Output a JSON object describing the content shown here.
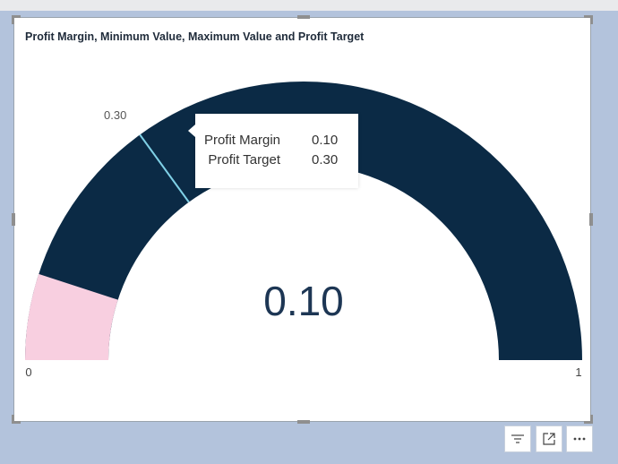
{
  "visual": {
    "title": "Profit Margin, Minimum Value, Maximum Value and Profit Target"
  },
  "chart_data": {
    "type": "gauge",
    "min": 0,
    "max": 1,
    "value": 0.1,
    "target": 0.3,
    "min_label": "0",
    "max_label": "1",
    "value_label": "0.10",
    "target_label": "0.30",
    "colors": {
      "fill": "#f8cfe0",
      "track": "#0b2a45",
      "target_line": "#7fd0e6"
    }
  },
  "tooltip": {
    "rows": [
      {
        "label": "Profit Margin",
        "value": "0.10"
      },
      {
        "label": "Profit Target",
        "value": "0.30"
      }
    ]
  },
  "toolbar": {
    "filter_icon": "filter-lines-icon",
    "focus_icon": "focus-mode-icon",
    "more_icon": "more-options-icon"
  }
}
